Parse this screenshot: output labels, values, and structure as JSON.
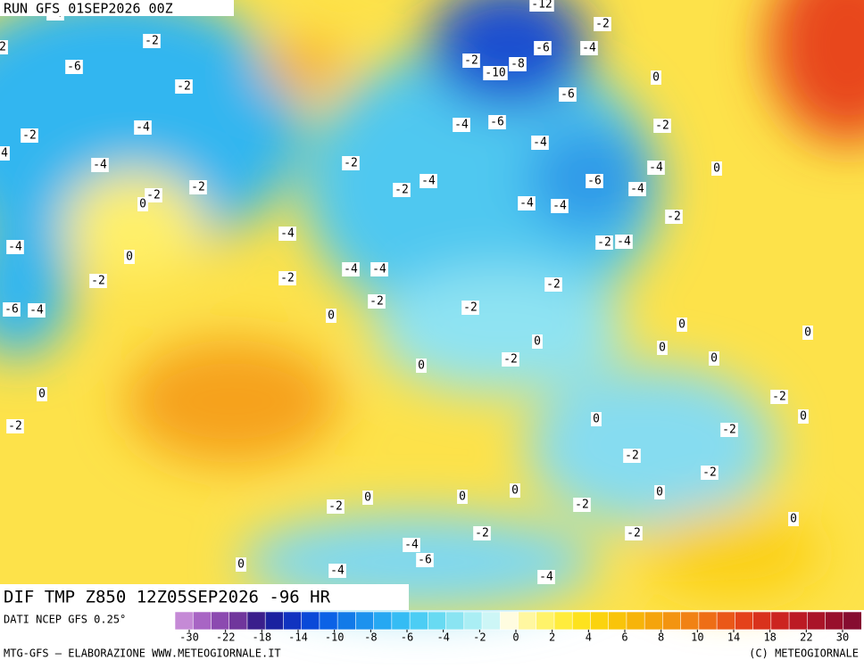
{
  "header": {
    "run": "RUN GFS 01SEP2026 00Z"
  },
  "map": {
    "title": "DIF TMP Z850 12Z05SEP2026 -96 HR",
    "contour_labels": [
      "-4",
      "-12",
      "-2",
      "-2",
      "-6",
      "-4",
      "2",
      "-6",
      "-2",
      "-10",
      "-8",
      "0",
      "-2",
      "-6",
      "-4",
      "-4",
      "-6",
      "-2",
      "-2",
      "-4",
      "4",
      "-4",
      "-2",
      "-4",
      "0",
      "-2",
      "-2",
      "-4",
      "-6",
      "-4",
      "-2",
      "0",
      "-4",
      "-4",
      "-2",
      "-4",
      "-2",
      "-4",
      "-4",
      "0",
      "-4",
      "-4",
      "-2",
      "-2",
      "-2",
      "-2",
      "-2",
      "-6",
      "-4",
      "0",
      "0",
      "0",
      "0",
      "0",
      "-2",
      "0",
      "0",
      "0",
      "-2",
      "0",
      "0",
      "-2",
      "-2",
      "-2",
      "-2",
      "0",
      "0",
      "0",
      "0",
      "-2",
      "-2",
      "0",
      "-2",
      "-2",
      "-4",
      "-6",
      "0",
      "-4",
      "-4"
    ]
  },
  "legend": {
    "source": "DATI NCEP GFS 0.25°",
    "ticks": [
      -30,
      -22,
      -18,
      -14,
      -10,
      -8,
      -6,
      -4,
      -2,
      0,
      2,
      4,
      6,
      8,
      10,
      14,
      18,
      22,
      30
    ],
    "colors": [
      "#c58ad6",
      "#a865c4",
      "#8c4ab0",
      "#70369c",
      "#3a1f8c",
      "#1a22a0",
      "#1033c0",
      "#0a4ad8",
      "#0b62e6",
      "#127ae8",
      "#1c92ee",
      "#26a8f2",
      "#35bcf4",
      "#4ccdf4",
      "#68daf2",
      "#8ae4f2",
      "#aaeef4",
      "#cdf6f6",
      "#fffce0",
      "#fff7a0",
      "#fff36a",
      "#ffec3c",
      "#fde21e",
      "#fbd30e",
      "#f9c40a",
      "#f7b40a",
      "#f5a40c",
      "#f39410",
      "#f18214",
      "#ee6e16",
      "#ea5818",
      "#e4421a",
      "#d9321c",
      "#cc2420",
      "#bc1a24",
      "#aa1428",
      "#980f2c",
      "#860c30"
    ]
  },
  "footer": {
    "left": "MTG-GFS — ELABORAZIONE WWW.METEOGIORNALE.IT",
    "right": "(C) METEOGIORNALE"
  }
}
